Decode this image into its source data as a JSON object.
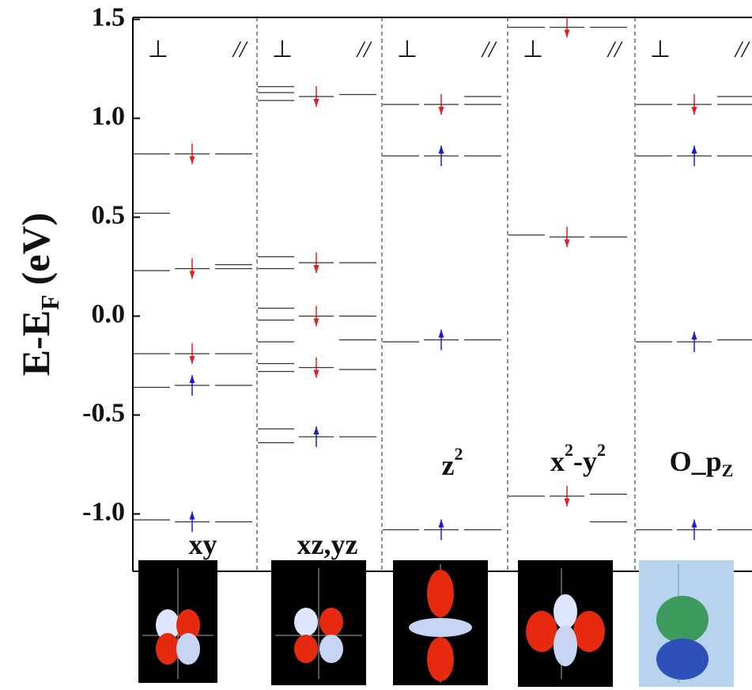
{
  "chart_data": {
    "type": "energy-levels",
    "y_label": "E-E",
    "y_label_sub": "F",
    "y_label_unit": "(eV)",
    "ylim": [
      -1.29,
      1.51
    ],
    "yticks": [
      1.5,
      {
        "value": 1.0,
        "label": "1.0"
      },
      0.5,
      {
        "value": 0.0,
        "label": "0.0"
      },
      -0.5,
      {
        "value": -1.0,
        "label": "-1.0"
      }
    ],
    "colors": {
      "up": "#1a1ad6",
      "down": "#e02020",
      "level": "#333333"
    },
    "panels": [
      {
        "label": [
          {
            "t": "xy"
          }
        ],
        "label_at": -1.17,
        "perp_symbol": "⊥",
        "parallel_symbol": "//",
        "perp": [
          0.82,
          0.52,
          0.23,
          -0.19,
          -0.36,
          -1.03
        ],
        "spin": [
          {
            "value": 0.82,
            "dir": "down"
          },
          {
            "value": 0.24,
            "dir": "down"
          },
          {
            "value": -0.19,
            "dir": "down"
          },
          {
            "value": -0.35,
            "dir": "up"
          },
          {
            "value": -1.04,
            "dir": "up"
          }
        ],
        "parallel": [
          0.82,
          0.26,
          0.24,
          -0.19,
          -0.35,
          -1.04
        ]
      },
      {
        "label": [
          {
            "t": "xz,yz"
          }
        ],
        "label_at": -1.17,
        "perp_symbol": "⊥",
        "parallel_symbol": "//",
        "perp": [
          1.16,
          1.13,
          1.09,
          0.3,
          0.24,
          0.04,
          -0.02,
          -0.13,
          -0.24,
          -0.28,
          -0.57,
          -0.64
        ],
        "spin": [
          {
            "value": 1.11,
            "dir": "down"
          },
          {
            "value": 0.27,
            "dir": "down"
          },
          {
            "value": 0.0,
            "dir": "down"
          },
          {
            "value": -0.26,
            "dir": "down"
          },
          {
            "value": -0.61,
            "dir": "up"
          }
        ],
        "parallel": [
          1.12,
          0.27,
          0.0,
          -0.12,
          -0.27,
          -0.61
        ]
      },
      {
        "label": [
          {
            "t": "z"
          },
          {
            "t": "2",
            "pos": "sup"
          }
        ],
        "label_at": -0.77,
        "perp_symbol": "⊥",
        "parallel_symbol": "//",
        "perp": [
          1.07,
          0.81,
          -0.13,
          -1.08
        ],
        "spin": [
          {
            "value": 1.07,
            "dir": "down"
          },
          {
            "value": 0.81,
            "dir": "up"
          },
          {
            "value": -0.12,
            "dir": "up"
          },
          {
            "value": -1.08,
            "dir": "up"
          }
        ],
        "parallel": [
          1.11,
          1.07,
          0.81,
          -0.12,
          -1.08
        ]
      },
      {
        "label": [
          {
            "t": "x"
          },
          {
            "t": "2",
            "pos": "sup"
          },
          {
            "t": "-y"
          },
          {
            "t": "2",
            "pos": "sup"
          }
        ],
        "label_at": -0.75,
        "perp_symbol": "⊥",
        "parallel_symbol": "//",
        "perp": [
          1.46,
          0.41,
          -0.91
        ],
        "spin": [
          {
            "value": 1.46,
            "dir": "down"
          },
          {
            "value": 0.4,
            "dir": "down"
          },
          {
            "value": -0.91,
            "dir": "down"
          }
        ],
        "parallel": [
          1.46,
          0.4,
          -0.9,
          -1.04
        ]
      },
      {
        "label": [
          {
            "t": "O_p"
          },
          {
            "t": "Z",
            "pos": "sub"
          }
        ],
        "label_at": -0.75,
        "perp_symbol": "⊥",
        "parallel_symbol": "//",
        "perp": [
          1.07,
          0.81,
          -0.13,
          -1.08
        ],
        "spin": [
          {
            "value": 1.07,
            "dir": "down"
          },
          {
            "value": 0.81,
            "dir": "up"
          },
          {
            "value": -0.13,
            "dir": "up"
          },
          {
            "value": -1.08,
            "dir": "up"
          }
        ],
        "parallel": [
          1.11,
          1.07,
          0.81,
          -0.12,
          -1.08
        ]
      }
    ]
  }
}
